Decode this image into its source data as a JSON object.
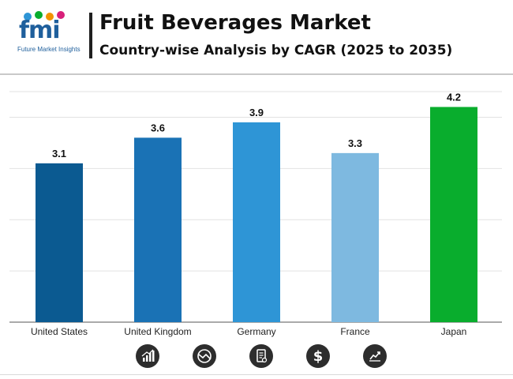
{
  "header": {
    "title": "Fruit Beverages Market",
    "subtitle": "Country-wise Analysis by CAGR (2025 to 2035)",
    "logo_text": "fmi",
    "logo_subtext": "Future Market Insights"
  },
  "colors": {
    "United States": "#0b5a91",
    "United Kingdom": "#1a72b5",
    "Germany": "#2e95d6",
    "France": "#7eb9e0",
    "Japan": "#09ad2d"
  },
  "chart_data": {
    "type": "bar",
    "title": "",
    "xlabel": "",
    "ylabel": "",
    "categories": [
      "United States",
      "United Kingdom",
      "Germany",
      "France",
      "Japan"
    ],
    "values": [
      3.1,
      3.6,
      3.9,
      3.3,
      4.2
    ],
    "ylim": [
      0,
      4.5
    ],
    "grid": true,
    "data_labels": true
  },
  "footer_icons": [
    "bar-chart-icon",
    "trend-circle-icon",
    "document-icon",
    "dollar-icon",
    "growth-chart-icon"
  ]
}
